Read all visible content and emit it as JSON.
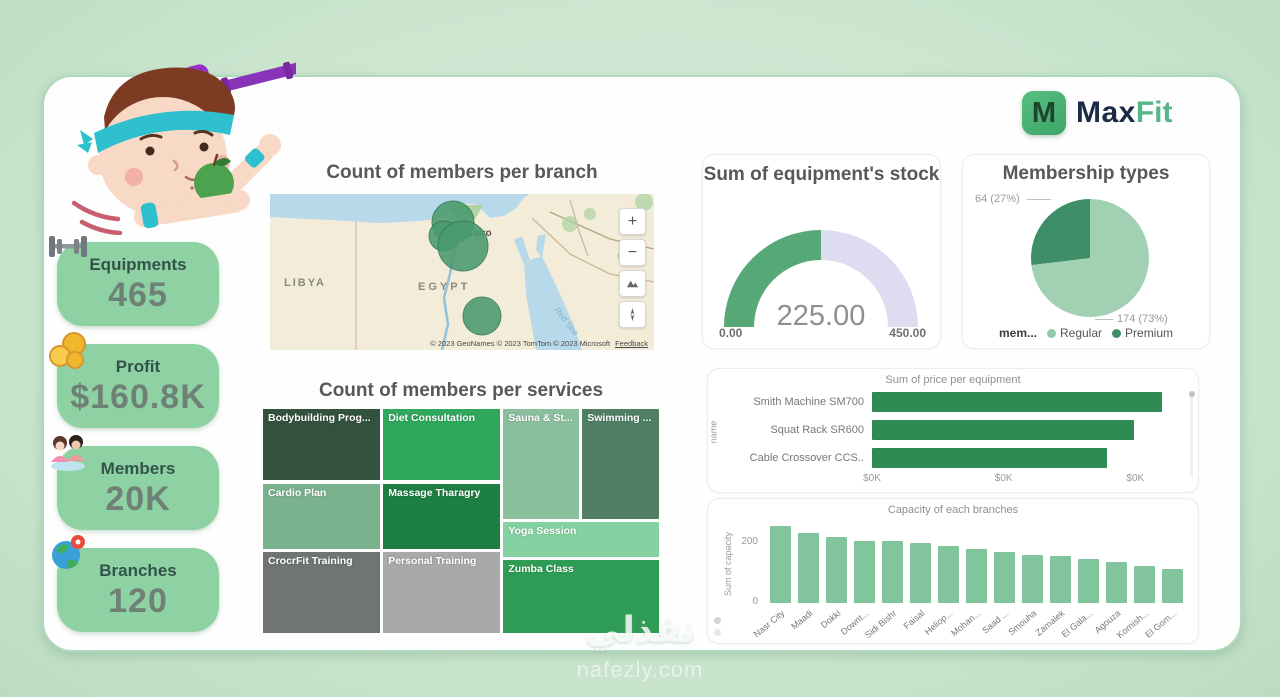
{
  "brand": {
    "logo_letter": "M",
    "name_dark": "Max",
    "name_green": "Fit"
  },
  "kpis": [
    {
      "label": "Equipments",
      "value": "465",
      "icon": "dumbbell-icon"
    },
    {
      "label": "Profit",
      "value": "$160.8K",
      "icon": "coins-icon"
    },
    {
      "label": "Members",
      "value": "20K",
      "icon": "members-icon"
    },
    {
      "label": "Branches",
      "value": "120",
      "icon": "globe-pin-icon"
    }
  ],
  "map_panel": {
    "labels": {
      "libya": "LIBYA",
      "egypt": "EGYPT",
      "red_sea": "Red Sea",
      "cairo": "Cairo"
    },
    "controls": {
      "zoom_in": "+",
      "zoom_out": "−"
    },
    "attribution": "© 2023 GeoNames  © 2023 TomTom  © 2023 Microsoft",
    "feedback": "Feedback"
  },
  "pie_panel": {
    "legend_title": "mem...",
    "legend": [
      "Regular",
      "Premium"
    ]
  },
  "watermark": {
    "arabic": "نفذلي",
    "site": "nafezly.com"
  },
  "colors": {
    "background": "#cbe5cf",
    "kpi_bg": "#8ed2a3",
    "gauge_fill": "#57a877",
    "gauge_track": "#dedcf0",
    "pie_light": "#a2d0b2",
    "pie_dark": "#3e8f68",
    "equipment_bar": "#2e8a52",
    "capacity_bar": "#82c49c",
    "bubble": "#4a9a6f"
  },
  "chart_data": [
    {
      "id": "members_map",
      "type": "map-bubble",
      "title": "Count of members per branch",
      "region": "Egypt",
      "bubbles": [
        {
          "name": "Cairo cluster A",
          "x": 183,
          "y": 28,
          "r": 21
        },
        {
          "name": "Cairo cluster B",
          "x": 174,
          "y": 42,
          "r": 15
        },
        {
          "name": "Cairo cluster C",
          "x": 193,
          "y": 52,
          "r": 25
        },
        {
          "name": "Upper Egypt branch",
          "x": 212,
          "y": 122,
          "r": 19
        }
      ]
    },
    {
      "id": "stock_gauge",
      "type": "gauge",
      "title": "Sum of equipment's stock",
      "value": 225.0,
      "min": 0.0,
      "max": 450.0,
      "value_label": "225.00",
      "min_label": "0.00",
      "max_label": "450.00"
    },
    {
      "id": "membership_pie",
      "type": "pie",
      "title": "Membership types",
      "categories": [
        "Regular",
        "Premium"
      ],
      "values": [
        174,
        64
      ],
      "labels": [
        "174 (73%)",
        "64 (27%)"
      ],
      "colors": [
        "#a2d0b2",
        "#3e8f68"
      ],
      "legend_position": "bottom"
    },
    {
      "id": "services_treemap",
      "type": "treemap",
      "title": "Count of members per services",
      "tiles": [
        {
          "label": "Bodybuilding Prog...",
          "color": "#33523e",
          "x": 0,
          "y": 0,
          "w": 29.8,
          "h": 32.5
        },
        {
          "label": "Diet Consultation",
          "color": "#2fa85c",
          "x": 30.2,
          "y": 0,
          "w": 29.8,
          "h": 32.5
        },
        {
          "label": "Sauna & St...",
          "color": "#8abf9e",
          "x": 60.4,
          "y": 0,
          "w": 19.4,
          "h": 49.5
        },
        {
          "label": "Swimming ...",
          "color": "#507f64",
          "x": 80.2,
          "y": 0,
          "w": 19.8,
          "h": 49.5
        },
        {
          "label": "Cardio Plan",
          "color": "#7ab28e",
          "x": 0,
          "y": 33,
          "w": 29.8,
          "h": 29.8
        },
        {
          "label": "Massage Tharagry",
          "color": "#1e7f42",
          "x": 30.2,
          "y": 33,
          "w": 29.8,
          "h": 29.8
        },
        {
          "label": "CrocrFit Training",
          "color": "#707571",
          "x": 0,
          "y": 63.3,
          "w": 29.8,
          "h": 36.7
        },
        {
          "label": "Personal Training",
          "color": "#a7aaa7",
          "x": 30.2,
          "y": 63.3,
          "w": 29.8,
          "h": 36.7
        },
        {
          "label": "Yoga Session",
          "color": "#84d2a1",
          "x": 60.4,
          "y": 50,
          "w": 39.6,
          "h": 16.4
        },
        {
          "label": "Zumba Class",
          "color": "#2f9c55",
          "x": 60.4,
          "y": 66.9,
          "w": 39.6,
          "h": 33.1
        }
      ]
    },
    {
      "id": "equipment_bar",
      "type": "bar",
      "orientation": "horizontal",
      "title": "Sum of price per equipment",
      "ylabel": "name",
      "categories": [
        "Smith Machine SM700",
        "Squat Rack SR600",
        "Cable Crossover CCS.."
      ],
      "values_rel": [
        1.0,
        0.905,
        0.81
      ],
      "xticks": [
        "$0K",
        "$0K",
        "$0K"
      ],
      "xticks_rel": [
        0,
        0.454,
        0.908
      ],
      "color": "#2e8a52"
    },
    {
      "id": "capacity_bar",
      "type": "bar",
      "orientation": "vertical",
      "title": "Capacity of each branches",
      "ylabel": "Sum of capacity",
      "yticks": [
        "200",
        "0"
      ],
      "ymax": 260,
      "categories": [
        "Nasr City",
        "Maadi",
        "Dokki",
        "Downt...",
        "Sidi Bishr",
        "Faisal",
        "Heliop...",
        "Mohan...",
        "Saad ...",
        "Smouha",
        "Zamalek",
        "El Gala...",
        "Agouza",
        "Kornish...",
        "El Gom..."
      ],
      "values": [
        250,
        228,
        215,
        203,
        200,
        194,
        186,
        176,
        166,
        157,
        152,
        142,
        132,
        121,
        112
      ],
      "color": "#82c49c"
    }
  ]
}
